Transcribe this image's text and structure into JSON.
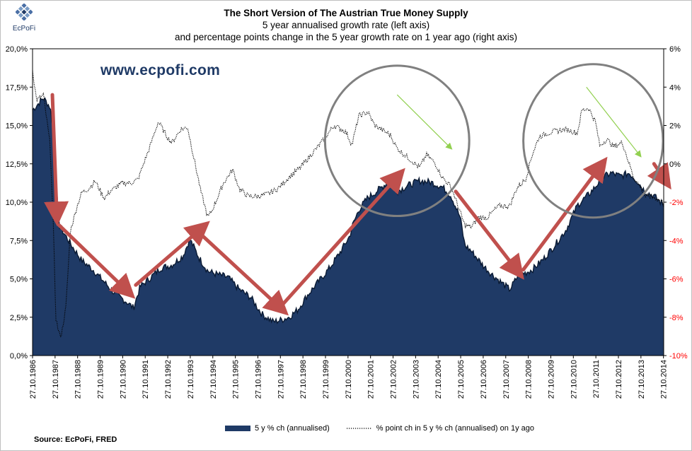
{
  "header": {
    "title": "The Short Version of The Austrian True Money Supply",
    "subtitle1": "5 year annualised growth rate (left axis)",
    "subtitle2": "and percentage points change in the 5 year growth rate on 1 year ago (right axis)"
  },
  "logo": {
    "text": "EcPoFi"
  },
  "watermark": "www.ecpofi.com",
  "source": "Source: EcPoFi,  FRED",
  "legend": {
    "area_label": "5 y % ch (annualised)",
    "line_label": "% point ch in 5 y % ch (annualised) on 1y ago"
  },
  "colors": {
    "area": "#1f3a66",
    "line": "#000000",
    "arrow": "#c0504d",
    "circle": "#808080",
    "green_arrow": "#92d050",
    "negative_right_tick": "#ff0000"
  },
  "chart_data": {
    "type": "area",
    "title": "The Short Version of The Austrian True Money Supply",
    "x_start": 1986.82,
    "x_end": 2014.83,
    "x_tick_labels": [
      "27.10.1986",
      "27.10.1987",
      "27.10.1988",
      "27.10.1989",
      "27.10.1990",
      "27.10.1991",
      "27.10.1992",
      "27.10.1993",
      "27.10.1994",
      "27.10.1995",
      "27.10.1996",
      "27.10.1997",
      "27.10.1998",
      "27.10.1999",
      "27.10.2000",
      "27.10.2001",
      "27.10.2002",
      "27.10.2003",
      "27.10.2004",
      "27.10.2005",
      "27.10.2006",
      "27.10.2007",
      "27.10.2008",
      "27.10.2009",
      "27.10.2010",
      "27.10.2011",
      "27.10.2012",
      "27.10.2013",
      "27.10.2014"
    ],
    "left_axis": {
      "min": 0,
      "max": 20,
      "step": 2.5,
      "tick_labels": [
        "0,0%",
        "2,5%",
        "5,0%",
        "7,5%",
        "10,0%",
        "12,5%",
        "15,0%",
        "17,5%",
        "20,0%"
      ]
    },
    "right_axis": {
      "min": -10,
      "max": 6,
      "step": 2,
      "tick_labels": [
        "-10%",
        "-8%",
        "-6%",
        "-4%",
        "-2%",
        "0%",
        "2%",
        "4%",
        "6%"
      ]
    },
    "series": [
      {
        "name": "5 y % ch (annualised)",
        "axis": "left",
        "kind": "area",
        "x": [
          1986.82,
          1987.0,
          1987.3,
          1987.6,
          1987.75,
          1987.9,
          1988.0,
          1988.5,
          1989.0,
          1989.5,
          1990.0,
          1990.5,
          1991.0,
          1991.3,
          1991.6,
          1992.0,
          1992.5,
          1993.0,
          1993.5,
          1993.8,
          1994.2,
          1994.6,
          1995.0,
          1995.5,
          1996.0,
          1996.5,
          1997.0,
          1997.5,
          1997.8,
          1998.2,
          1998.6,
          1999.0,
          1999.5,
          2000.0,
          2000.5,
          2000.9,
          2001.0,
          2001.3,
          2001.7,
          2002.0,
          2002.5,
          2002.8,
          2003.0,
          2003.5,
          2004.0,
          2004.5,
          2005.0,
          2005.4,
          2005.8,
          2006.0,
          2006.3,
          2006.8,
          2007.2,
          2007.6,
          2008.0,
          2008.4,
          2008.7,
          2009.0,
          2009.5,
          2010.0,
          2010.5,
          2011.0,
          2011.5,
          2011.8,
          2012.1,
          2012.5,
          2012.9,
          2013.3,
          2013.7,
          2014.0,
          2014.4,
          2014.83
        ],
        "values": [
          16.0,
          16.3,
          16.8,
          16.2,
          14.5,
          10.5,
          8.5,
          7.3,
          6.2,
          5.6,
          4.8,
          4.0,
          3.5,
          3.1,
          4.5,
          5.0,
          5.7,
          5.9,
          6.5,
          7.6,
          6.4,
          5.5,
          5.3,
          5.1,
          4.3,
          3.8,
          2.7,
          2.2,
          2.3,
          2.5,
          3.0,
          3.9,
          4.8,
          5.7,
          6.8,
          7.8,
          8.4,
          9.5,
          10.3,
          10.6,
          11.2,
          11.4,
          10.7,
          11.1,
          11.4,
          11.3,
          11.0,
          10.4,
          9.0,
          7.2,
          6.8,
          5.9,
          5.3,
          4.8,
          4.3,
          5.3,
          5.4,
          5.6,
          6.3,
          7.2,
          8.2,
          9.8,
          10.5,
          11.0,
          11.6,
          11.9,
          11.7,
          11.9,
          11.3,
          10.7,
          10.4,
          9.8
        ]
      },
      {
        "name": "% point ch in 5 y % ch (annualised) on 1y ago",
        "axis": "right",
        "kind": "line",
        "x": [
          1986.82,
          1987.0,
          1987.3,
          1987.6,
          1987.75,
          1987.85,
          1988.0,
          1988.1,
          1988.3,
          1988.5,
          1988.8,
          1989.0,
          1989.3,
          1989.6,
          1990.0,
          1990.3,
          1990.8,
          1991.2,
          1991.5,
          1992.0,
          1992.4,
          1992.8,
          1993.0,
          1993.4,
          1993.7,
          1994.0,
          1994.3,
          1994.6,
          1994.8,
          1995.3,
          1995.7,
          1996.0,
          1996.4,
          1996.8,
          1997.2,
          1997.7,
          1998.2,
          1998.7,
          1999.2,
          1999.7,
          2000.2,
          2000.7,
          2001.0,
          2001.3,
          2001.7,
          2002.0,
          2002.3,
          2002.7,
          2003.0,
          2003.5,
          2004.0,
          2004.3,
          2004.7,
          2005.0,
          2005.4,
          2005.7,
          2006.0,
          2006.3,
          2006.6,
          2007.0,
          2007.5,
          2008.0,
          2008.3,
          2008.7,
          2009.0,
          2009.3,
          2009.7,
          2010.0,
          2010.5,
          2011.0,
          2011.2,
          2011.5,
          2011.8,
          2012.0,
          2012.3,
          2012.6,
          2013.0,
          2013.3,
          2013.5,
          2013.8,
          2014.0,
          2014.3,
          2014.83
        ],
        "values": [
          4.9,
          3.3,
          3.6,
          1.0,
          -3.5,
          -8.0,
          -8.9,
          -8.9,
          -7.5,
          -3.5,
          -2.2,
          -1.5,
          -1.3,
          -0.9,
          -1.8,
          -1.4,
          -1.0,
          -1.0,
          -0.8,
          0.8,
          2.2,
          1.4,
          1.1,
          1.8,
          1.9,
          0.2,
          -1.5,
          -2.8,
          -2.4,
          -1.0,
          -0.3,
          -1.3,
          -1.7,
          -1.7,
          -1.6,
          -1.3,
          -0.7,
          -0.2,
          0.5,
          1.2,
          2.0,
          1.7,
          1.0,
          2.5,
          2.7,
          2.0,
          1.8,
          1.5,
          0.8,
          0.3,
          -0.2,
          0.5,
          0.0,
          -0.7,
          -1.2,
          -2.2,
          -3.2,
          -3.3,
          -2.8,
          -2.8,
          -2.2,
          -2.2,
          -1.3,
          -0.8,
          0.5,
          1.4,
          1.6,
          1.7,
          1.8,
          1.6,
          2.8,
          2.9,
          2.2,
          0.9,
          1.3,
          0.9,
          1.1,
          0.0,
          -0.7,
          -1.2,
          -1.7,
          -1.7,
          -2.0
        ]
      }
    ],
    "annotations": [
      "trend arrows up and down",
      "circles marking 2001-2005 and 2010-2014 peaks"
    ]
  }
}
